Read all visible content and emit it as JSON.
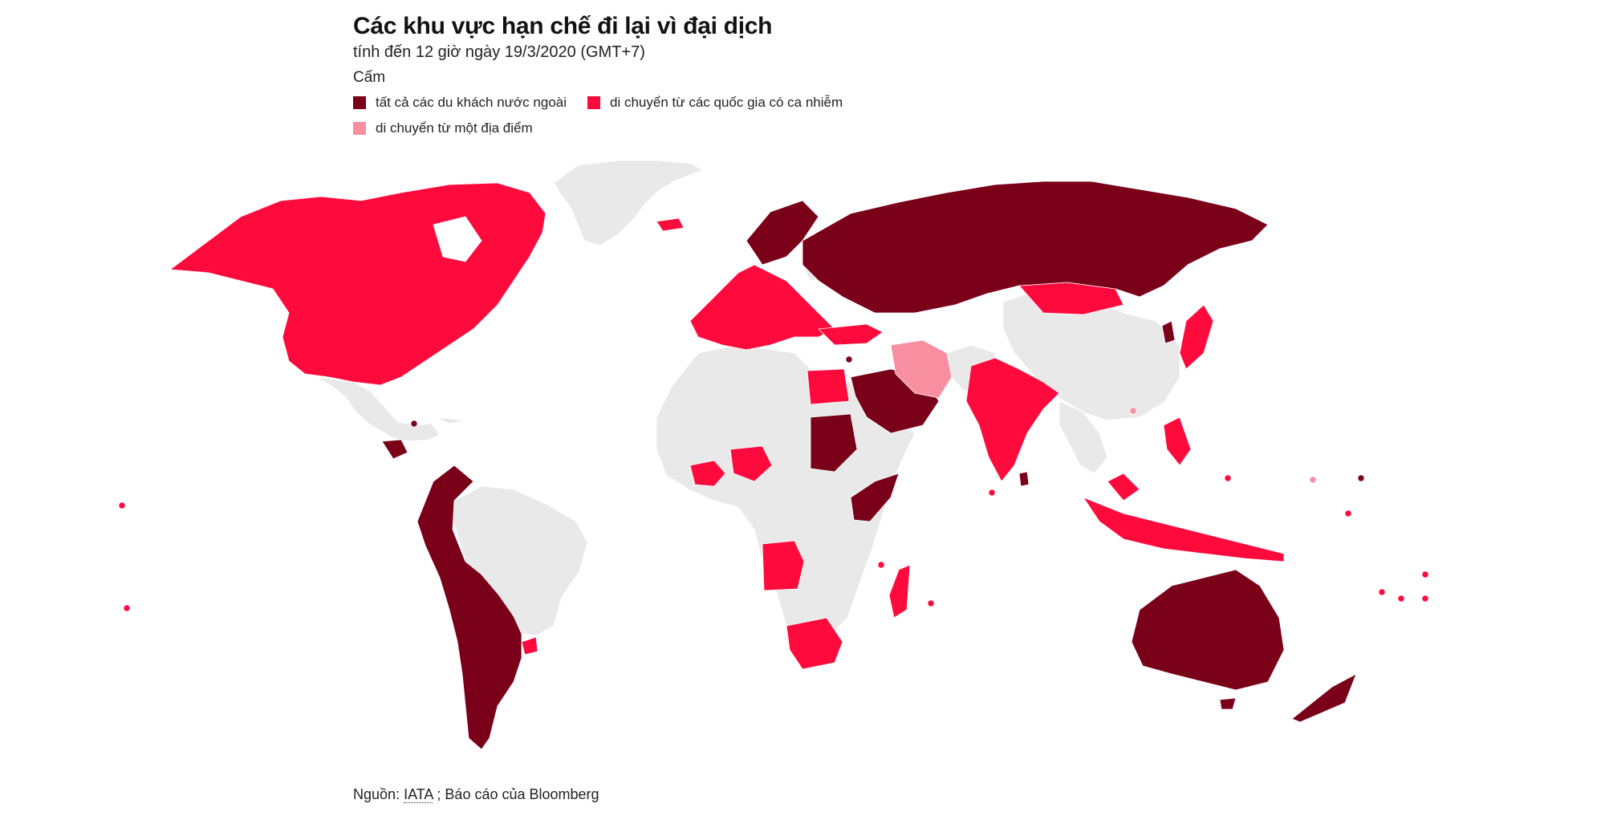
{
  "title": "Các khu vực hạn chế đi lại vì đại dịch",
  "subtitle": "tính đến 12 giờ ngày 19/3/2020 (GMT+7)",
  "legend": {
    "title": "Cấm",
    "items": [
      {
        "label": "tất cả các du khách nước ngoài",
        "color": "#7a0019"
      },
      {
        "label": "di chuyển từ các quốc gia có ca nhiễm",
        "color": "#ff0a3c"
      },
      {
        "label": "di chuyển từ một địa điểm",
        "color": "#f78fa0"
      }
    ]
  },
  "colors": {
    "no_restriction": "#e9e9e9",
    "all_foreign": "#7a0019",
    "from_infected": "#ff0a3c",
    "from_location": "#f78fa0"
  },
  "source": {
    "prefix": "Nguồn:",
    "link_text": "IATA",
    "suffix": "; Báo cáo của Bloomberg"
  }
}
